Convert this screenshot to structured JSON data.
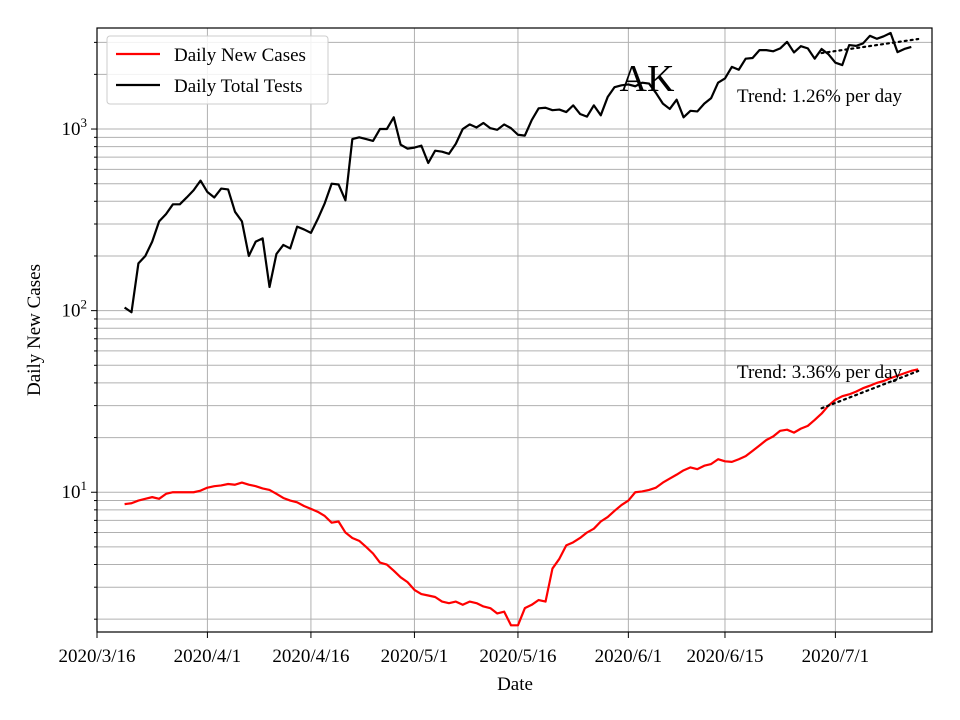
{
  "chart_data": {
    "type": "line",
    "title": "AK",
    "xlabel": "Date",
    "ylabel": "Daily New Cases",
    "yscale": "log",
    "grid": true,
    "legend_position": "top-left",
    "x_ticks": [
      "2020/3/16",
      "2020/4/1",
      "2020/4/16",
      "2020/5/1",
      "2020/5/16",
      "2020/6/1",
      "2020/6/15",
      "2020/7/1"
    ],
    "x_tick_dates": [
      "2020-03-16",
      "2020-04-01",
      "2020-04-16",
      "2020-05-01",
      "2020-05-16",
      "2020-06-01",
      "2020-06-15",
      "2020-07-01"
    ],
    "x_range": [
      "2020-03-16",
      "2020-07-15"
    ],
    "y_range": [
      1.7,
      3600
    ],
    "y_major_ticks": [
      {
        "value": 10,
        "label_base": "10",
        "label_exp": "1"
      },
      {
        "value": 100,
        "label_base": "10",
        "label_exp": "2"
      },
      {
        "value": 1000,
        "label_base": "10",
        "label_exp": "3"
      }
    ],
    "series": [
      {
        "name": "Daily New Cases",
        "color": "#ff0000",
        "points": [
          [
            "2020-03-20",
            8.6
          ],
          [
            "2020-03-21",
            8.7
          ],
          [
            "2020-03-22",
            9.0
          ],
          [
            "2020-03-23",
            9.2
          ],
          [
            "2020-03-24",
            9.4
          ],
          [
            "2020-03-25",
            9.2
          ],
          [
            "2020-03-26",
            9.8
          ],
          [
            "2020-03-27",
            10.0
          ],
          [
            "2020-03-28",
            10.0
          ],
          [
            "2020-03-29",
            10.0
          ],
          [
            "2020-03-30",
            10.0
          ],
          [
            "2020-03-31",
            10.2
          ],
          [
            "2020-04-01",
            10.6
          ],
          [
            "2020-04-02",
            10.8
          ],
          [
            "2020-04-03",
            10.9
          ],
          [
            "2020-04-04",
            11.1
          ],
          [
            "2020-04-05",
            11.0
          ],
          [
            "2020-04-06",
            11.3
          ],
          [
            "2020-04-07",
            11.0
          ],
          [
            "2020-04-08",
            10.8
          ],
          [
            "2020-04-09",
            10.5
          ],
          [
            "2020-04-10",
            10.3
          ],
          [
            "2020-04-11",
            9.8
          ],
          [
            "2020-04-12",
            9.3
          ],
          [
            "2020-04-13",
            9.0
          ],
          [
            "2020-04-14",
            8.8
          ],
          [
            "2020-04-15",
            8.4
          ],
          [
            "2020-04-16",
            8.1
          ],
          [
            "2020-04-17",
            7.8
          ],
          [
            "2020-04-18",
            7.4
          ],
          [
            "2020-04-19",
            6.8
          ],
          [
            "2020-04-20",
            6.9
          ],
          [
            "2020-04-21",
            6.0
          ],
          [
            "2020-04-22",
            5.6
          ],
          [
            "2020-04-23",
            5.4
          ],
          [
            "2020-04-24",
            5.0
          ],
          [
            "2020-04-25",
            4.6
          ],
          [
            "2020-04-26",
            4.1
          ],
          [
            "2020-04-27",
            4.0
          ],
          [
            "2020-04-28",
            3.7
          ],
          [
            "2020-04-29",
            3.4
          ],
          [
            "2020-04-30",
            3.2
          ],
          [
            "2020-05-01",
            2.9
          ],
          [
            "2020-05-02",
            2.75
          ],
          [
            "2020-05-03",
            2.7
          ],
          [
            "2020-05-04",
            2.65
          ],
          [
            "2020-05-05",
            2.5
          ],
          [
            "2020-05-06",
            2.45
          ],
          [
            "2020-05-07",
            2.5
          ],
          [
            "2020-05-08",
            2.4
          ],
          [
            "2020-05-09",
            2.5
          ],
          [
            "2020-05-10",
            2.45
          ],
          [
            "2020-05-11",
            2.35
          ],
          [
            "2020-05-12",
            2.3
          ],
          [
            "2020-05-13",
            2.15
          ],
          [
            "2020-05-14",
            2.2
          ],
          [
            "2020-05-15",
            1.85
          ],
          [
            "2020-05-16",
            1.85
          ],
          [
            "2020-05-17",
            2.3
          ],
          [
            "2020-05-18",
            2.4
          ],
          [
            "2020-05-19",
            2.55
          ],
          [
            "2020-05-20",
            2.5
          ],
          [
            "2020-05-21",
            3.8
          ],
          [
            "2020-05-22",
            4.3
          ],
          [
            "2020-05-23",
            5.1
          ],
          [
            "2020-05-24",
            5.3
          ],
          [
            "2020-05-25",
            5.6
          ],
          [
            "2020-05-26",
            6.0
          ],
          [
            "2020-05-27",
            6.3
          ],
          [
            "2020-05-28",
            6.9
          ],
          [
            "2020-05-29",
            7.3
          ],
          [
            "2020-05-30",
            7.9
          ],
          [
            "2020-05-31",
            8.5
          ],
          [
            "2020-06-01",
            9.0
          ],
          [
            "2020-06-02",
            10.0
          ],
          [
            "2020-06-03",
            10.1
          ],
          [
            "2020-06-04",
            10.3
          ],
          [
            "2020-06-05",
            10.6
          ],
          [
            "2020-06-06",
            11.3
          ],
          [
            "2020-06-07",
            11.9
          ],
          [
            "2020-06-08",
            12.5
          ],
          [
            "2020-06-09",
            13.2
          ],
          [
            "2020-06-10",
            13.7
          ],
          [
            "2020-06-11",
            13.4
          ],
          [
            "2020-06-12",
            14.0
          ],
          [
            "2020-06-13",
            14.3
          ],
          [
            "2020-06-14",
            15.2
          ],
          [
            "2020-06-15",
            14.8
          ],
          [
            "2020-06-16",
            14.7
          ],
          [
            "2020-06-17",
            15.2
          ],
          [
            "2020-06-18",
            15.8
          ],
          [
            "2020-06-19",
            16.9
          ],
          [
            "2020-06-20",
            18.1
          ],
          [
            "2020-06-21",
            19.4
          ],
          [
            "2020-06-22",
            20.3
          ],
          [
            "2020-06-23",
            21.8
          ],
          [
            "2020-06-24",
            22.1
          ],
          [
            "2020-06-25",
            21.3
          ],
          [
            "2020-06-26",
            22.4
          ],
          [
            "2020-06-27",
            23.2
          ],
          [
            "2020-06-28",
            25.0
          ],
          [
            "2020-06-29",
            27.1
          ],
          [
            "2020-06-30",
            30.0
          ],
          [
            "2020-07-01",
            32.3
          ],
          [
            "2020-07-02",
            33.8
          ],
          [
            "2020-07-03",
            34.6
          ],
          [
            "2020-07-04",
            35.8
          ],
          [
            "2020-07-05",
            37.4
          ],
          [
            "2020-07-06",
            38.6
          ],
          [
            "2020-07-07",
            40.0
          ],
          [
            "2020-07-08",
            41.0
          ],
          [
            "2020-07-09",
            42.5
          ],
          [
            "2020-07-10",
            43.8
          ],
          [
            "2020-07-11",
            45.2
          ],
          [
            "2020-07-12",
            46.6
          ],
          [
            "2020-07-13",
            47.5
          ]
        ]
      },
      {
        "name": "Daily Total Tests",
        "color": "#000000",
        "points": [
          [
            "2020-03-20",
            104
          ],
          [
            "2020-03-21",
            98
          ],
          [
            "2020-03-22",
            182
          ],
          [
            "2020-03-23",
            200
          ],
          [
            "2020-03-24",
            240
          ],
          [
            "2020-03-25",
            310
          ],
          [
            "2020-03-26",
            340
          ],
          [
            "2020-03-27",
            385
          ],
          [
            "2020-03-28",
            385
          ],
          [
            "2020-03-29",
            420
          ],
          [
            "2020-03-30",
            460
          ],
          [
            "2020-03-31",
            520
          ],
          [
            "2020-04-01",
            450
          ],
          [
            "2020-04-02",
            420
          ],
          [
            "2020-04-03",
            470
          ],
          [
            "2020-04-04",
            465
          ],
          [
            "2020-04-05",
            350
          ],
          [
            "2020-04-06",
            310
          ],
          [
            "2020-04-07",
            200
          ],
          [
            "2020-04-08",
            240
          ],
          [
            "2020-04-09",
            250
          ],
          [
            "2020-04-10",
            135
          ],
          [
            "2020-04-11",
            205
          ],
          [
            "2020-04-12",
            230
          ],
          [
            "2020-04-13",
            220
          ],
          [
            "2020-04-14",
            290
          ],
          [
            "2020-04-15",
            280
          ],
          [
            "2020-04-16",
            268
          ],
          [
            "2020-04-17",
            320
          ],
          [
            "2020-04-18",
            390
          ],
          [
            "2020-04-19",
            500
          ],
          [
            "2020-04-20",
            495
          ],
          [
            "2020-04-21",
            405
          ],
          [
            "2020-04-22",
            880
          ],
          [
            "2020-04-23",
            900
          ],
          [
            "2020-04-24",
            880
          ],
          [
            "2020-04-25",
            860
          ],
          [
            "2020-04-26",
            1000
          ],
          [
            "2020-04-27",
            1000
          ],
          [
            "2020-04-28",
            1160
          ],
          [
            "2020-04-29",
            820
          ],
          [
            "2020-04-30",
            780
          ],
          [
            "2020-05-01",
            790
          ],
          [
            "2020-05-02",
            810
          ],
          [
            "2020-05-03",
            650
          ],
          [
            "2020-05-04",
            760
          ],
          [
            "2020-05-05",
            750
          ],
          [
            "2020-05-06",
            730
          ],
          [
            "2020-05-07",
            830
          ],
          [
            "2020-05-08",
            1000
          ],
          [
            "2020-05-09",
            1060
          ],
          [
            "2020-05-10",
            1020
          ],
          [
            "2020-05-11",
            1080
          ],
          [
            "2020-05-12",
            1010
          ],
          [
            "2020-05-13",
            990
          ],
          [
            "2020-05-14",
            1060
          ],
          [
            "2020-05-15",
            1010
          ],
          [
            "2020-05-16",
            930
          ],
          [
            "2020-05-17",
            920
          ],
          [
            "2020-05-18",
            1120
          ],
          [
            "2020-05-19",
            1300
          ],
          [
            "2020-05-20",
            1310
          ],
          [
            "2020-05-21",
            1270
          ],
          [
            "2020-05-22",
            1280
          ],
          [
            "2020-05-23",
            1240
          ],
          [
            "2020-05-24",
            1350
          ],
          [
            "2020-05-25",
            1210
          ],
          [
            "2020-05-26",
            1170
          ],
          [
            "2020-05-27",
            1350
          ],
          [
            "2020-05-28",
            1190
          ],
          [
            "2020-05-29",
            1500
          ],
          [
            "2020-05-30",
            1700
          ],
          [
            "2020-05-31",
            1740
          ],
          [
            "2020-06-01",
            1760
          ],
          [
            "2020-06-02",
            1720
          ],
          [
            "2020-06-03",
            1800
          ],
          [
            "2020-06-04",
            1780
          ],
          [
            "2020-06-05",
            1580
          ],
          [
            "2020-06-06",
            1380
          ],
          [
            "2020-06-07",
            1290
          ],
          [
            "2020-06-08",
            1450
          ],
          [
            "2020-06-09",
            1160
          ],
          [
            "2020-06-10",
            1260
          ],
          [
            "2020-06-11",
            1250
          ],
          [
            "2020-06-12",
            1380
          ],
          [
            "2020-06-13",
            1480
          ],
          [
            "2020-06-14",
            1800
          ],
          [
            "2020-06-15",
            1900
          ],
          [
            "2020-06-16",
            2200
          ],
          [
            "2020-06-17",
            2120
          ],
          [
            "2020-06-18",
            2440
          ],
          [
            "2020-06-19",
            2460
          ],
          [
            "2020-06-20",
            2720
          ],
          [
            "2020-06-21",
            2720
          ],
          [
            "2020-06-22",
            2680
          ],
          [
            "2020-06-23",
            2780
          ],
          [
            "2020-06-24",
            3020
          ],
          [
            "2020-06-25",
            2640
          ],
          [
            "2020-06-26",
            2860
          ],
          [
            "2020-06-27",
            2780
          ],
          [
            "2020-06-28",
            2440
          ],
          [
            "2020-06-29",
            2760
          ],
          [
            "2020-06-30",
            2580
          ],
          [
            "2020-07-01",
            2320
          ],
          [
            "2020-07-02",
            2250
          ],
          [
            "2020-07-03",
            2900
          ],
          [
            "2020-07-04",
            2870
          ],
          [
            "2020-07-05",
            2960
          ],
          [
            "2020-07-06",
            3260
          ],
          [
            "2020-07-07",
            3140
          ],
          [
            "2020-07-08",
            3240
          ],
          [
            "2020-07-09",
            3380
          ],
          [
            "2020-07-10",
            2650
          ],
          [
            "2020-07-11",
            2760
          ],
          [
            "2020-07-12",
            2830
          ]
        ]
      }
    ],
    "trend_lines": [
      {
        "series": "Daily New Cases",
        "style": "dotted",
        "color": "#000000",
        "start": [
          "2020-06-29",
          29.0
        ],
        "end": [
          "2020-07-13",
          46.5
        ]
      },
      {
        "series": "Daily Total Tests",
        "style": "dotted",
        "color": "#000000",
        "start": [
          "2020-06-29",
          2620
        ],
        "end": [
          "2020-07-13",
          3130
        ]
      }
    ],
    "annotations": [
      {
        "text": "Trend: 1.26% per day",
        "position": "upper-right"
      },
      {
        "text": "Trend: 3.36% per day",
        "position": "right"
      }
    ]
  }
}
